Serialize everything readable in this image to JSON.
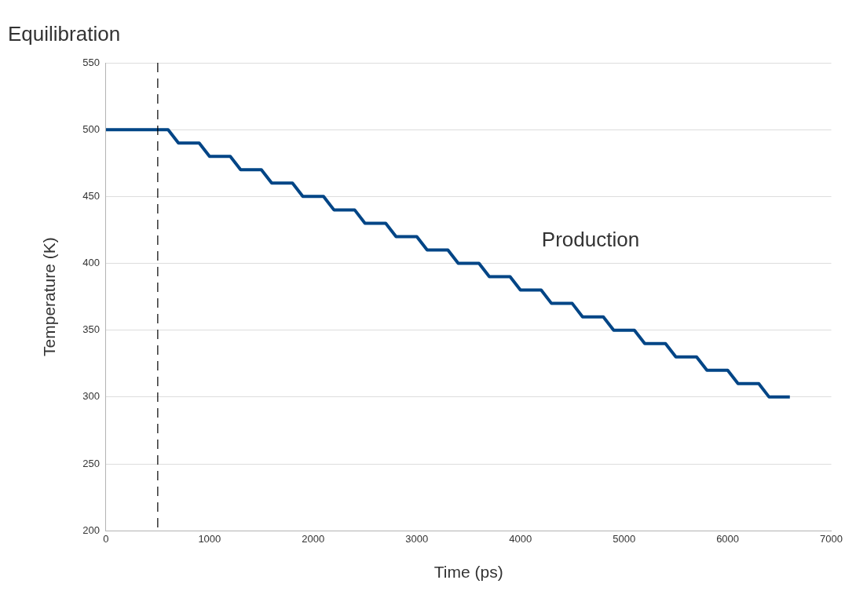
{
  "chart_data": {
    "type": "line",
    "xlabel": "Time (ps)",
    "ylabel": "Temperature (K)",
    "x": [
      0,
      600,
      700,
      900,
      1000,
      1200,
      1300,
      1500,
      1600,
      1800,
      1900,
      2100,
      2200,
      2400,
      2500,
      2700,
      2800,
      3000,
      3100,
      3300,
      3400,
      3600,
      3700,
      3900,
      4000,
      4200,
      4300,
      4500,
      4600,
      4800,
      4900,
      5100,
      5200,
      5400,
      5500,
      5700,
      5800,
      6000,
      6100,
      6300,
      6400,
      6600
    ],
    "values": [
      500,
      500,
      490,
      490,
      480,
      480,
      470,
      470,
      460,
      460,
      450,
      450,
      440,
      440,
      430,
      430,
      420,
      420,
      410,
      410,
      400,
      400,
      390,
      390,
      380,
      380,
      370,
      370,
      360,
      360,
      350,
      350,
      340,
      340,
      330,
      330,
      320,
      320,
      310,
      310,
      300,
      300
    ],
    "color": "#004586",
    "xlim": [
      0,
      7000
    ],
    "xticks": [
      0,
      1000,
      2000,
      3000,
      4000,
      5000,
      6000,
      7000
    ],
    "ylim": [
      200,
      550
    ],
    "yticks": [
      200,
      250,
      300,
      350,
      400,
      450,
      500,
      550
    ],
    "grid": "y",
    "marker": "none",
    "line_style": "solid",
    "ref_lines": [
      {
        "axis": "x",
        "value": 500,
        "color": "#000000",
        "line_style": "dashed"
      }
    ],
    "annotations": [
      "Equilibration",
      "Production"
    ]
  }
}
